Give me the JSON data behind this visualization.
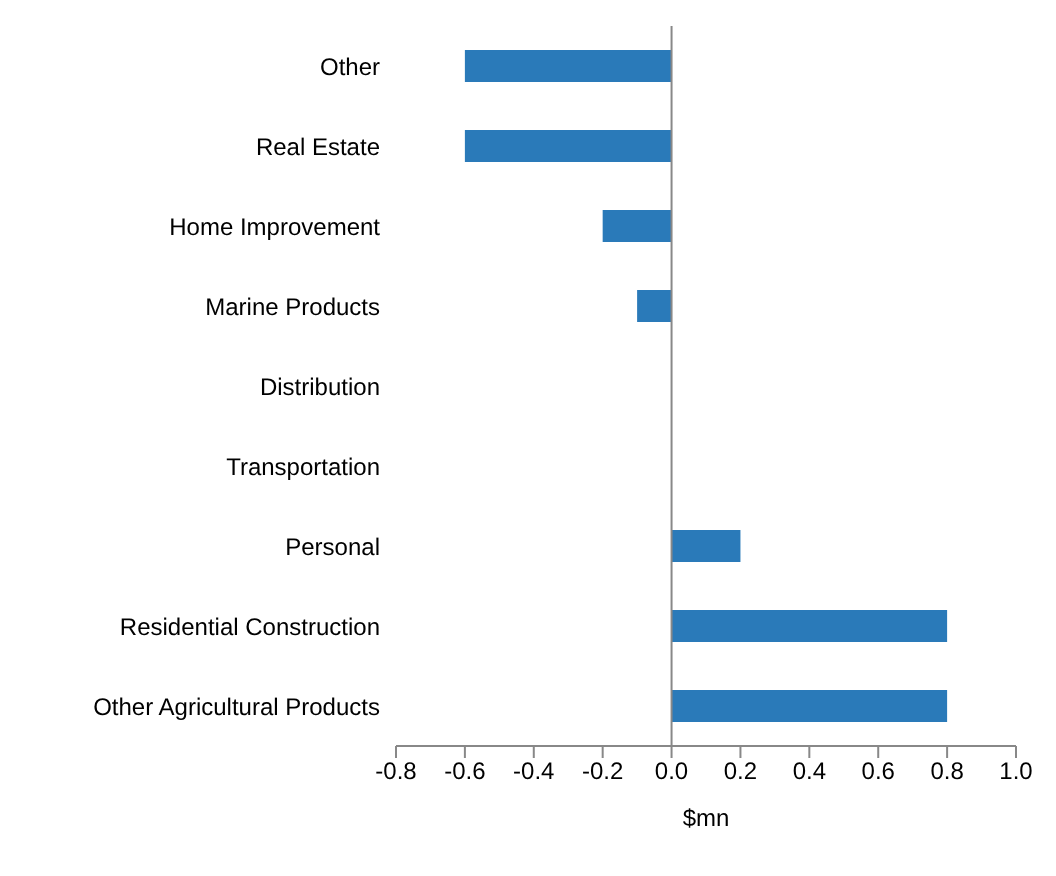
{
  "chart_data": {
    "type": "bar",
    "orientation": "horizontal",
    "xlabel": "$mn",
    "categories": [
      "Other",
      "Real Estate",
      "Home Improvement",
      "Marine Products",
      "Distribution",
      "Transportation",
      "Personal",
      "Residential Construction",
      "Other Agricultural Products"
    ],
    "values": [
      -0.6,
      -0.6,
      -0.2,
      -0.1,
      0,
      0,
      0.2,
      0.8,
      0.8
    ],
    "color": "#2a7ab9",
    "xlim": [
      -0.8,
      1.0
    ],
    "xticks": [
      -0.8,
      -0.6,
      -0.4,
      -0.2,
      {
        "value": 0,
        "label": "0.0"
      },
      0.2,
      0.4,
      0.6,
      0.8,
      {
        "value": 1,
        "label": "1.0"
      }
    ],
    "legend": false
  }
}
